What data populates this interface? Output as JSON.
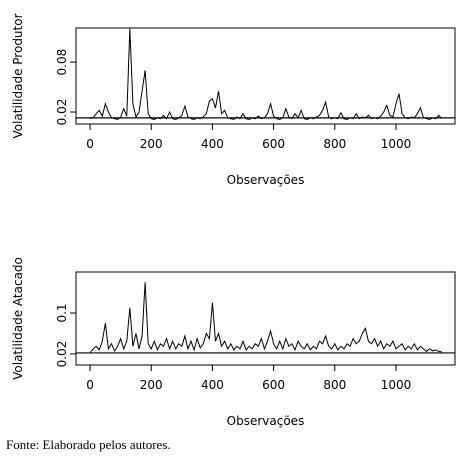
{
  "chart_data": [
    {
      "type": "line",
      "ylabel": "Volatilidade Produtor",
      "xlabel": "Observações",
      "xlim": [
        -46,
        1193
      ],
      "xticks": [
        0,
        200,
        400,
        600,
        800,
        1000
      ],
      "ylim": [
        0.0056,
        0.121
      ],
      "yticks": [
        0.02,
        0.08
      ],
      "hline": 0.013,
      "color": "#000000",
      "x": [
        0,
        10,
        20,
        30,
        40,
        50,
        60,
        70,
        80,
        90,
        100,
        110,
        120,
        130,
        140,
        150,
        160,
        170,
        180,
        190,
        200,
        210,
        220,
        230,
        240,
        250,
        260,
        270,
        280,
        290,
        300,
        310,
        320,
        330,
        340,
        350,
        360,
        370,
        380,
        390,
        400,
        410,
        420,
        430,
        440,
        450,
        460,
        470,
        480,
        490,
        500,
        510,
        520,
        530,
        540,
        550,
        560,
        570,
        580,
        590,
        600,
        610,
        620,
        630,
        640,
        650,
        660,
        670,
        680,
        690,
        700,
        710,
        720,
        730,
        740,
        750,
        760,
        770,
        780,
        790,
        800,
        810,
        820,
        830,
        840,
        850,
        860,
        870,
        880,
        890,
        900,
        910,
        920,
        930,
        940,
        950,
        960,
        970,
        980,
        990,
        1000,
        1010,
        1020,
        1030,
        1040,
        1050,
        1060,
        1070,
        1080,
        1090,
        1100,
        1110,
        1120,
        1130,
        1140,
        1150
      ],
      "values": [
        0.012,
        0.013,
        0.018,
        0.022,
        0.015,
        0.03,
        0.02,
        0.013,
        0.012,
        0.011,
        0.014,
        0.024,
        0.015,
        0.12,
        0.03,
        0.014,
        0.02,
        0.045,
        0.07,
        0.018,
        0.012,
        0.011,
        0.013,
        0.012,
        0.016,
        0.012,
        0.02,
        0.012,
        0.011,
        0.013,
        0.016,
        0.027,
        0.014,
        0.012,
        0.011,
        0.013,
        0.012,
        0.014,
        0.018,
        0.033,
        0.036,
        0.025,
        0.045,
        0.018,
        0.022,
        0.013,
        0.012,
        0.011,
        0.014,
        0.012,
        0.018,
        0.012,
        0.011,
        0.013,
        0.012,
        0.015,
        0.012,
        0.013,
        0.018,
        0.03,
        0.015,
        0.012,
        0.011,
        0.013,
        0.024,
        0.014,
        0.012,
        0.018,
        0.013,
        0.022,
        0.012,
        0.011,
        0.013,
        0.012,
        0.014,
        0.016,
        0.022,
        0.032,
        0.014,
        0.012,
        0.013,
        0.012,
        0.019,
        0.012,
        0.011,
        0.013,
        0.012,
        0.018,
        0.012,
        0.014,
        0.013,
        0.016,
        0.012,
        0.013,
        0.012,
        0.015,
        0.02,
        0.028,
        0.016,
        0.014,
        0.03,
        0.042,
        0.018,
        0.013,
        0.012,
        0.014,
        0.013,
        0.018,
        0.025,
        0.013,
        0.012,
        0.011,
        0.013,
        0.012,
        0.016,
        0.012
      ]
    },
    {
      "type": "line",
      "ylabel": "Volatilidade Atacado",
      "xlabel": "Observações",
      "xlim": [
        -46,
        1193
      ],
      "xticks": [
        0,
        200,
        400,
        600,
        800,
        1000
      ],
      "ylim": [
        -0.0015,
        0.18
      ],
      "yticks": [
        0.02,
        0.1
      ],
      "hline": 0.022,
      "color": "#000000",
      "x": [
        0,
        10,
        20,
        30,
        40,
        50,
        60,
        70,
        80,
        90,
        100,
        110,
        120,
        130,
        140,
        150,
        160,
        170,
        180,
        190,
        200,
        210,
        220,
        230,
        240,
        250,
        260,
        270,
        280,
        290,
        300,
        310,
        320,
        330,
        340,
        350,
        360,
        370,
        380,
        390,
        400,
        410,
        420,
        430,
        440,
        450,
        460,
        470,
        480,
        490,
        500,
        510,
        520,
        530,
        540,
        550,
        560,
        570,
        580,
        590,
        600,
        610,
        620,
        630,
        640,
        650,
        660,
        670,
        680,
        690,
        700,
        710,
        720,
        730,
        740,
        750,
        760,
        770,
        780,
        790,
        800,
        810,
        820,
        830,
        840,
        850,
        860,
        870,
        880,
        890,
        900,
        910,
        920,
        930,
        940,
        950,
        960,
        970,
        980,
        990,
        1000,
        1010,
        1020,
        1030,
        1040,
        1050,
        1060,
        1070,
        1080,
        1090,
        1100,
        1110,
        1120,
        1130,
        1140,
        1150
      ],
      "values": [
        0.022,
        0.03,
        0.035,
        0.028,
        0.045,
        0.08,
        0.03,
        0.04,
        0.026,
        0.035,
        0.05,
        0.03,
        0.045,
        0.11,
        0.035,
        0.06,
        0.03,
        0.055,
        0.16,
        0.04,
        0.03,
        0.045,
        0.028,
        0.04,
        0.035,
        0.05,
        0.03,
        0.045,
        0.03,
        0.04,
        0.035,
        0.055,
        0.03,
        0.045,
        0.028,
        0.05,
        0.032,
        0.04,
        0.06,
        0.05,
        0.12,
        0.045,
        0.06,
        0.035,
        0.045,
        0.03,
        0.04,
        0.028,
        0.035,
        0.03,
        0.045,
        0.028,
        0.035,
        0.03,
        0.04,
        0.035,
        0.05,
        0.03,
        0.045,
        0.065,
        0.04,
        0.03,
        0.045,
        0.03,
        0.05,
        0.035,
        0.04,
        0.028,
        0.045,
        0.035,
        0.03,
        0.04,
        0.028,
        0.035,
        0.03,
        0.045,
        0.04,
        0.055,
        0.035,
        0.03,
        0.04,
        0.028,
        0.035,
        0.03,
        0.04,
        0.035,
        0.05,
        0.04,
        0.045,
        0.06,
        0.07,
        0.045,
        0.04,
        0.05,
        0.035,
        0.045,
        0.03,
        0.04,
        0.035,
        0.045,
        0.03,
        0.035,
        0.04,
        0.028,
        0.035,
        0.03,
        0.04,
        0.028,
        0.035,
        0.03,
        0.025,
        0.03,
        0.026,
        0.028,
        0.025,
        0.024
      ]
    }
  ],
  "caption": "Fonte: Elaborado pelos autores."
}
